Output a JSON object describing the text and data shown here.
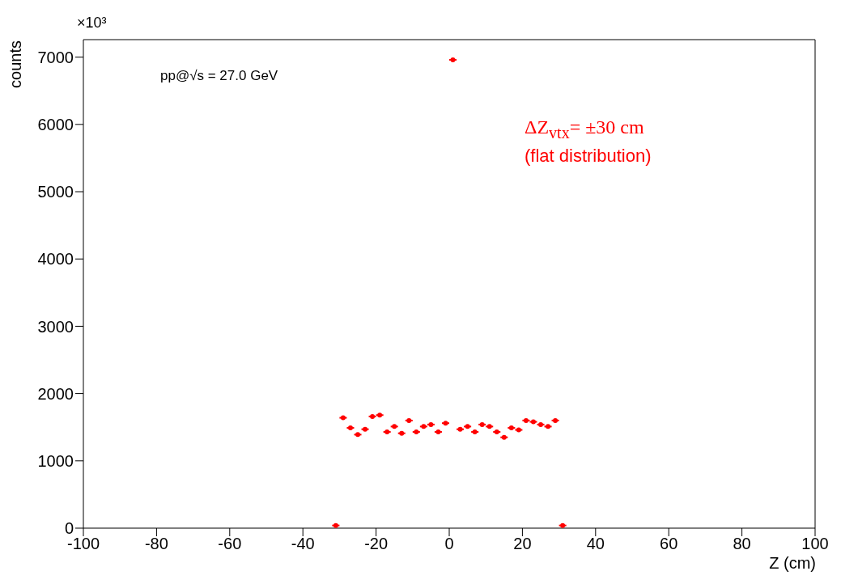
{
  "chart_data": {
    "type": "scatter",
    "xlabel": "Z (cm)",
    "ylabel": "counts",
    "annotations": [
      "×10³",
      "pp@√s = 27.0 GeV",
      "ΔZ$_{vtx}$= ±30 cm",
      "(flat distribution)"
    ],
    "x": [
      -31,
      -29,
      -27,
      -25,
      -23,
      -21,
      -19,
      -17,
      -15,
      -13,
      -11,
      -9,
      -7,
      -5,
      -3,
      -1,
      1,
      3,
      5,
      7,
      9,
      11,
      13,
      15,
      17,
      19,
      21,
      23,
      25,
      27,
      29,
      31
    ],
    "values": [
      40,
      1640,
      1490,
      1390,
      1470,
      1660,
      1680,
      1430,
      1510,
      1410,
      1600,
      1430,
      1510,
      1540,
      1430,
      1560,
      6960,
      1470,
      1510,
      1430,
      1540,
      1510,
      1430,
      1350,
      1490,
      1460,
      1600,
      1580,
      1540,
      1510,
      1600,
      40
    ],
    "xerrors": [
      1,
      1,
      1,
      1,
      1,
      1,
      1,
      1,
      1,
      1,
      1,
      1,
      1,
      1,
      1,
      1,
      1,
      1,
      1,
      1,
      1,
      1,
      1,
      1,
      1,
      1,
      1,
      1,
      1,
      1,
      1,
      1
    ],
    "color": "#ff0000",
    "marker": "circle",
    "xlim": [
      -100,
      100
    ],
    "ylim": [
      0,
      7260
    ],
    "xticks": [
      -100,
      -80,
      -60,
      -40,
      -20,
      0,
      20,
      40,
      60,
      80,
      100
    ],
    "yticks": [
      0,
      1000,
      2000,
      3000,
      4000,
      5000,
      6000,
      7000
    ]
  }
}
